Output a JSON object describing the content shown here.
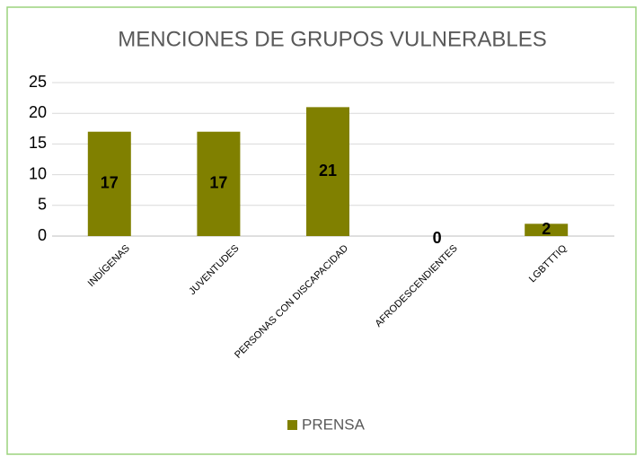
{
  "chart_data": {
    "type": "bar",
    "title": "MENCIONES DE GRUPOS VULNERABLES",
    "categories": [
      "INDÍGENAS",
      "JUVENTUDES",
      "PERSONAS CON DISCAPACIDAD",
      "AFRODESCENDIENTES",
      "LGBTTTIQ"
    ],
    "series": [
      {
        "name": "PRENSA",
        "color": "#808000",
        "values": [
          17,
          17,
          21,
          0,
          2
        ]
      }
    ],
    "ylim": [
      0,
      25
    ],
    "yticks": [
      0,
      5,
      10,
      15,
      20,
      25
    ],
    "grid": true,
    "legend": "bottom"
  }
}
